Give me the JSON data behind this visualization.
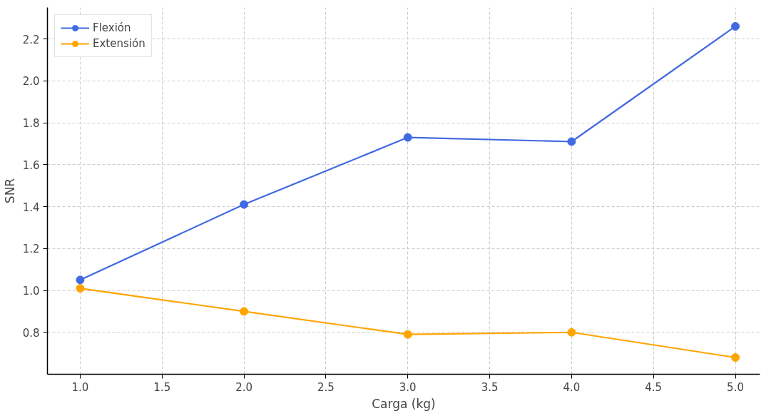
{
  "chart_data": {
    "type": "line",
    "xlabel": "Carga (kg)",
    "ylabel": "SNR",
    "x": [
      1.0,
      2.0,
      3.0,
      4.0,
      5.0
    ],
    "series": [
      {
        "name": "Flexión",
        "color": "#4169e1",
        "values": [
          1.05,
          1.41,
          1.73,
          1.71,
          2.26
        ]
      },
      {
        "name": "Extensión",
        "color": "#ffa500",
        "values": [
          1.01,
          0.9,
          0.79,
          0.8,
          0.68
        ]
      }
    ],
    "xlim": [
      0.8,
      5.15
    ],
    "ylim": [
      0.6,
      2.35
    ],
    "xticks": [
      {
        "value": 1.0,
        "label": "1.0"
      },
      {
        "value": 1.5,
        "label": "1.5"
      },
      {
        "value": 2.0,
        "label": "2.0"
      },
      {
        "value": 2.5,
        "label": "2.5"
      },
      {
        "value": 3.0,
        "label": "3.0"
      },
      {
        "value": 3.5,
        "label": "3.5"
      },
      {
        "value": 4.0,
        "label": "4.0"
      },
      {
        "value": 4.5,
        "label": "4.5"
      },
      {
        "value": 5.0,
        "label": "5.0"
      }
    ],
    "yticks": [
      {
        "value": 0.8,
        "label": "0.8"
      },
      {
        "value": 1.0,
        "label": "1.0"
      },
      {
        "value": 1.2,
        "label": "1.2"
      },
      {
        "value": 1.4,
        "label": "1.4"
      },
      {
        "value": 1.6,
        "label": "1.6"
      },
      {
        "value": 1.8,
        "label": "1.8"
      },
      {
        "value": 2.0,
        "label": "2.0"
      },
      {
        "value": 2.2,
        "label": "2.2"
      }
    ],
    "grid": true,
    "legend": "top left",
    "marker": "circle",
    "line_style": "solid"
  }
}
